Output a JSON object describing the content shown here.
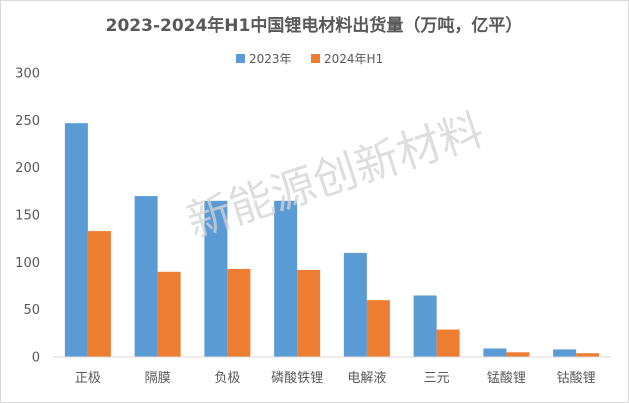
{
  "chart_data": {
    "type": "bar",
    "title": "2023-2024年H1中国锂电材料出货量（万吨，亿平）",
    "categories": [
      "正极",
      "隔膜",
      "负极",
      "磷酸铁锂",
      "电解液",
      "三元",
      "锰酸锂",
      "钴酸锂"
    ],
    "series": [
      {
        "name": "2023年",
        "color": "#5b9bd5",
        "values": [
          247,
          170,
          165,
          165,
          110,
          65,
          9,
          8
        ]
      },
      {
        "name": "2024年H1",
        "color": "#ed7d31",
        "values": [
          133,
          90,
          93,
          92,
          60,
          29,
          5,
          4
        ]
      }
    ],
    "ylim": [
      0,
      300
    ],
    "yticks": [
      0,
      50,
      100,
      150,
      200,
      250,
      300
    ],
    "xlabel": "",
    "ylabel": "",
    "legend": "top-center",
    "grid": false
  },
  "watermark": "新能源创新材料"
}
